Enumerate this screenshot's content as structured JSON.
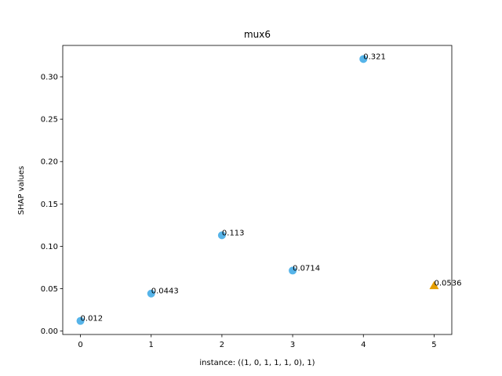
{
  "chart_data": {
    "type": "scatter",
    "title": "mux6",
    "xlabel": "instance: ((1, 0, 1, 1, 1, 0), 1)",
    "ylabel": "SHAP values",
    "xlim": [
      -0.25,
      5.25
    ],
    "ylim": [
      -0.004,
      0.337
    ],
    "xticks": [
      0,
      1,
      2,
      3,
      4,
      5
    ],
    "xtick_labels": [
      "0",
      "1",
      "2",
      "3",
      "4",
      "5"
    ],
    "yticks": [
      0.0,
      0.05,
      0.1,
      0.15,
      0.2,
      0.25,
      0.3
    ],
    "ytick_labels": [
      "0.00",
      "0.05",
      "0.10",
      "0.15",
      "0.20",
      "0.25",
      "0.30"
    ],
    "grid": false,
    "points": [
      {
        "x": 0,
        "y": 0.012,
        "label": "0.012",
        "marker": "circle",
        "color": "#56b4e9"
      },
      {
        "x": 1,
        "y": 0.0443,
        "label": "0.0443",
        "marker": "circle",
        "color": "#56b4e9"
      },
      {
        "x": 2,
        "y": 0.113,
        "label": "0.113",
        "marker": "circle",
        "color": "#56b4e9"
      },
      {
        "x": 3,
        "y": 0.0714,
        "label": "0.0714",
        "marker": "circle",
        "color": "#56b4e9"
      },
      {
        "x": 4,
        "y": 0.321,
        "label": "0.321",
        "marker": "circle",
        "color": "#56b4e9"
      },
      {
        "x": 5,
        "y": 0.0536,
        "label": "0.0536",
        "marker": "triangle",
        "color": "#e69f00"
      }
    ]
  }
}
